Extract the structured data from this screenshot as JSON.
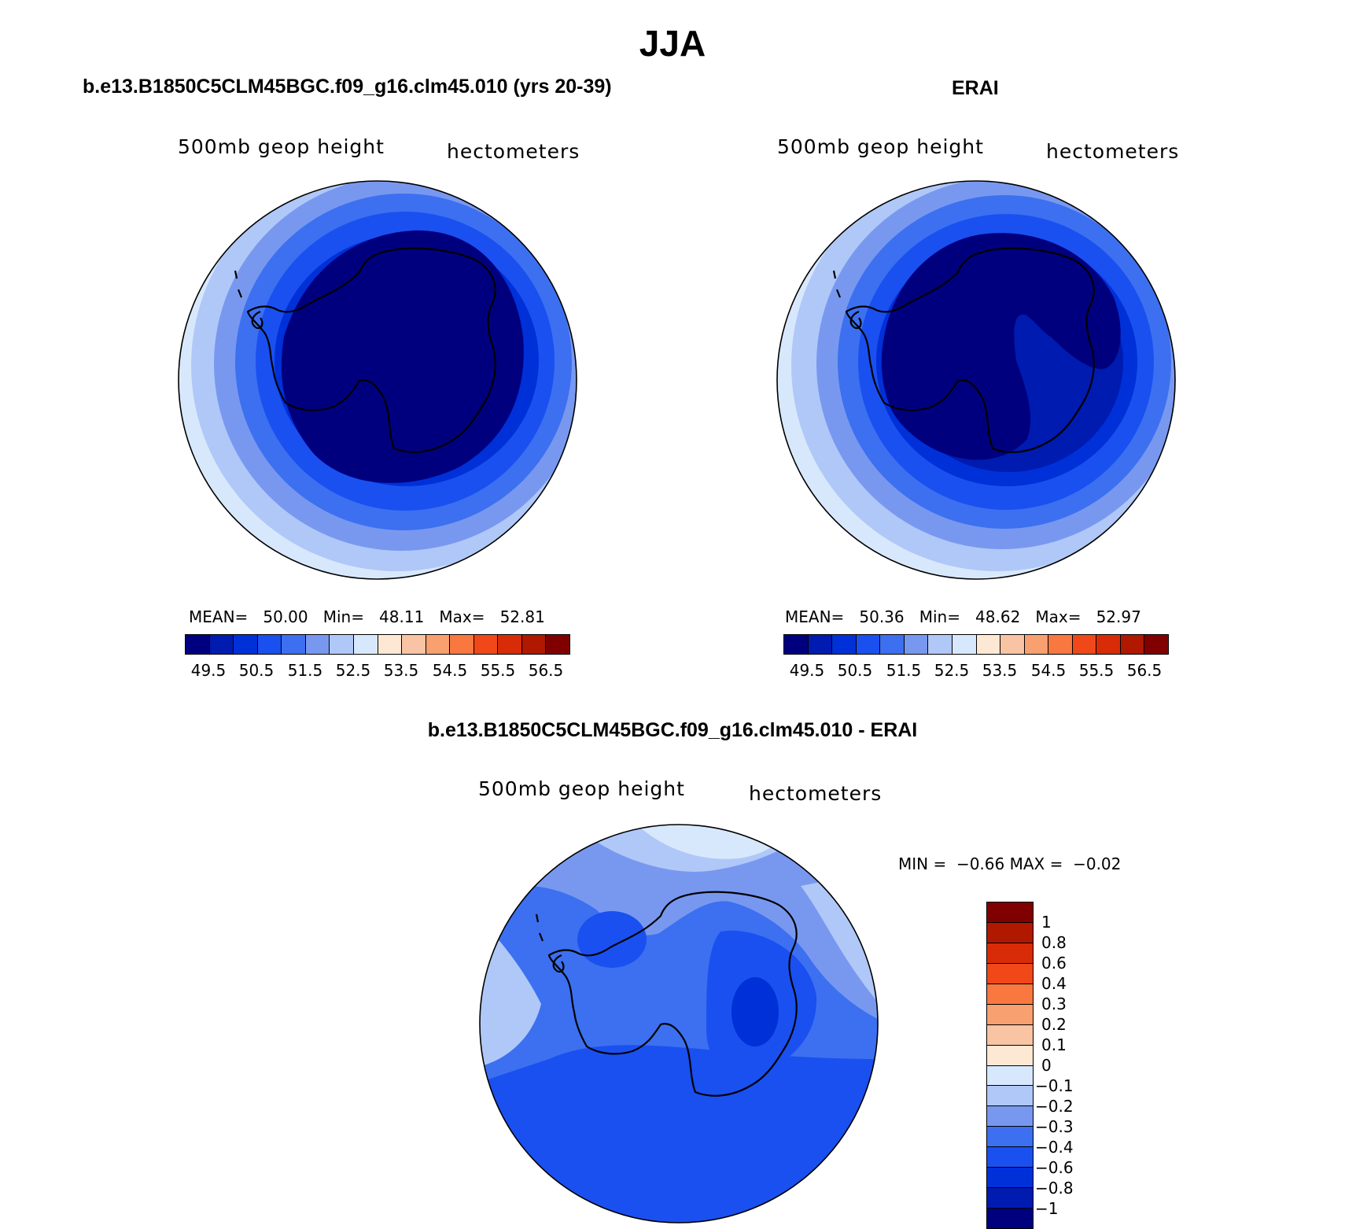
{
  "figure": {
    "title": "JJA",
    "panels": [
      {
        "id": "model",
        "title": "b.e13.B1850C5CLM45BGC.f09_g16.clm45.010 (yrs 20-39)",
        "field_label": "500mb geop height",
        "units_label": "hectometers",
        "stats": {
          "mean_label": "MEAN=",
          "mean": "50.00",
          "min_label": "Min=",
          "min": "48.11",
          "max_label": "Max=",
          "max": "52.81"
        }
      },
      {
        "id": "obs",
        "title": "ERAI",
        "field_label": "500mb geop height",
        "units_label": "hectometers",
        "stats": {
          "mean_label": "MEAN=",
          "mean": "50.36",
          "min_label": "Min=",
          "min": "48.62",
          "max_label": "Max=",
          "max": "52.97"
        }
      },
      {
        "id": "diff",
        "title": "b.e13.B1850C5CLM45BGC.f09_g16.clm45.010 - ERAI",
        "field_label": "500mb geop height",
        "units_label": "hectometers",
        "stats": {
          "min_label": "MIN =",
          "min": "−0.66",
          "max_label": "MAX =",
          "max": "−0.02"
        }
      }
    ],
    "colorbar_main": {
      "colors": [
        "#00007f",
        "#001bb0",
        "#0030d8",
        "#1a50f0",
        "#3c70f0",
        "#7898f0",
        "#b0c8f8",
        "#d8e8fc",
        "#fde8d4",
        "#f8c4a4",
        "#f8a070",
        "#f87840",
        "#f04818",
        "#d82c08",
        "#b01800",
        "#800000"
      ],
      "tick_labels": [
        "49.5",
        "50.5",
        "51.5",
        "52.5",
        "53.5",
        "54.5",
        "55.5",
        "56.5"
      ]
    },
    "colorbar_diff": {
      "colors": [
        "#00007f",
        "#001bb0",
        "#0030d8",
        "#1a50f0",
        "#3c70f0",
        "#7898f0",
        "#b0c8f8",
        "#d8e8fc",
        "#fde8d4",
        "#f8c4a4",
        "#f8a070",
        "#f87840",
        "#f04818",
        "#d82c08",
        "#b01800",
        "#800000"
      ],
      "tick_labels": [
        "1",
        "0.8",
        "0.6",
        "0.4",
        "0.3",
        "0.2",
        "0.1",
        "0",
        "−0.1",
        "−0.2",
        "−0.3",
        "−0.4",
        "−0.6",
        "−0.8",
        "−1"
      ]
    }
  }
}
